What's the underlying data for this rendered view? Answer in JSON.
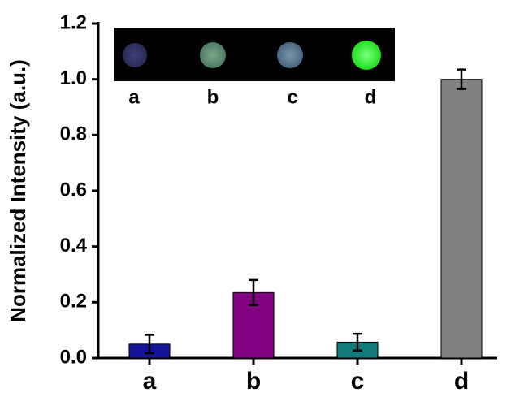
{
  "chart_data": {
    "type": "bar",
    "y_label": "Normalized Intensity (a.u.)",
    "categories": [
      "a",
      "b",
      "c",
      "d"
    ],
    "values": [
      0.05,
      0.235,
      0.057,
      1.0
    ],
    "errors": [
      0.033,
      0.045,
      0.03,
      0.035
    ],
    "colors": [
      "#14149a",
      "#820082",
      "#137a7a",
      "#808080"
    ],
    "ylim": [
      0,
      1.2
    ],
    "yticks": [
      {
        "value": 0,
        "label": "0.0"
      },
      0.2,
      0.4,
      0.6,
      0.8,
      {
        "value": 1,
        "label": "1.0"
      },
      1.2
    ],
    "inset_labels": [
      "a",
      "b",
      "c",
      "d"
    ]
  }
}
